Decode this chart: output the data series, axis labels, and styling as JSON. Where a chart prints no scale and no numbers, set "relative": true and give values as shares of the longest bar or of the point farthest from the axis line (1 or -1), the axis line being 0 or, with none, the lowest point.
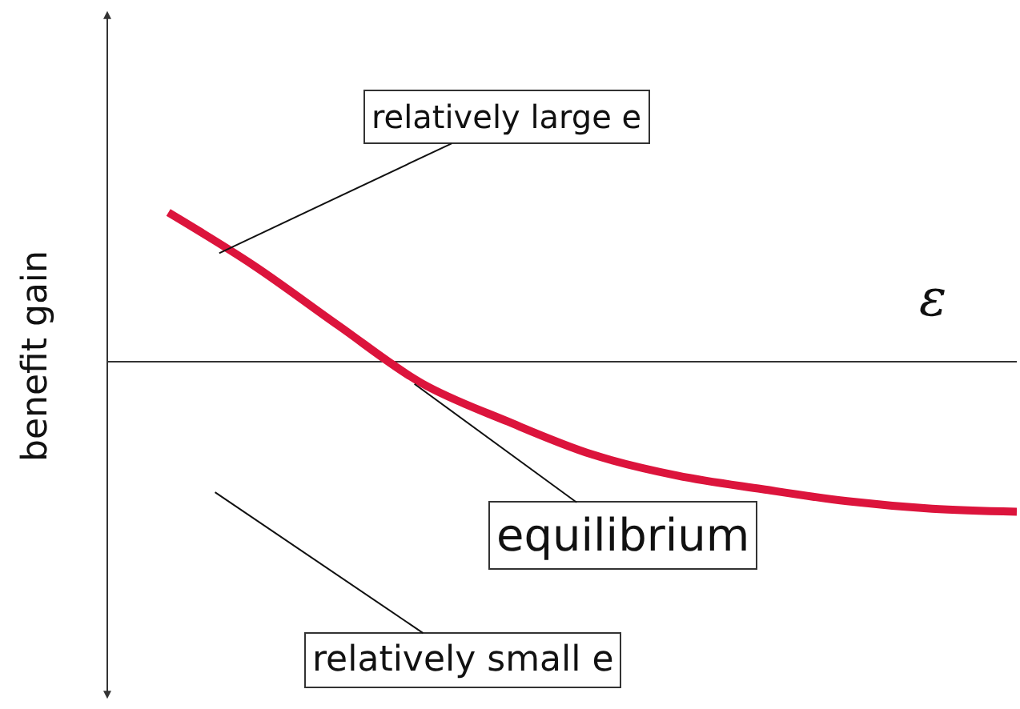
{
  "chart_data": {
    "type": "line",
    "relative": true,
    "xlabel": "ε",
    "ylabel": "benefit gain",
    "categories": [
      null,
      null,
      null,
      null,
      null,
      null,
      null,
      null,
      null,
      null,
      null
    ],
    "series": [
      {
        "color": "#dc143c",
        "values": [
          0.99,
          0.64,
          0.24,
          -0.15,
          -0.4,
          -0.62,
          -0.76,
          -0.85,
          -0.93,
          -0.98,
          -1.0
        ]
      }
    ],
    "annotations": [
      "relatively large e",
      "equilibrium",
      "relatively small e"
    ],
    "marker": "none",
    "line_style": "solid"
  }
}
